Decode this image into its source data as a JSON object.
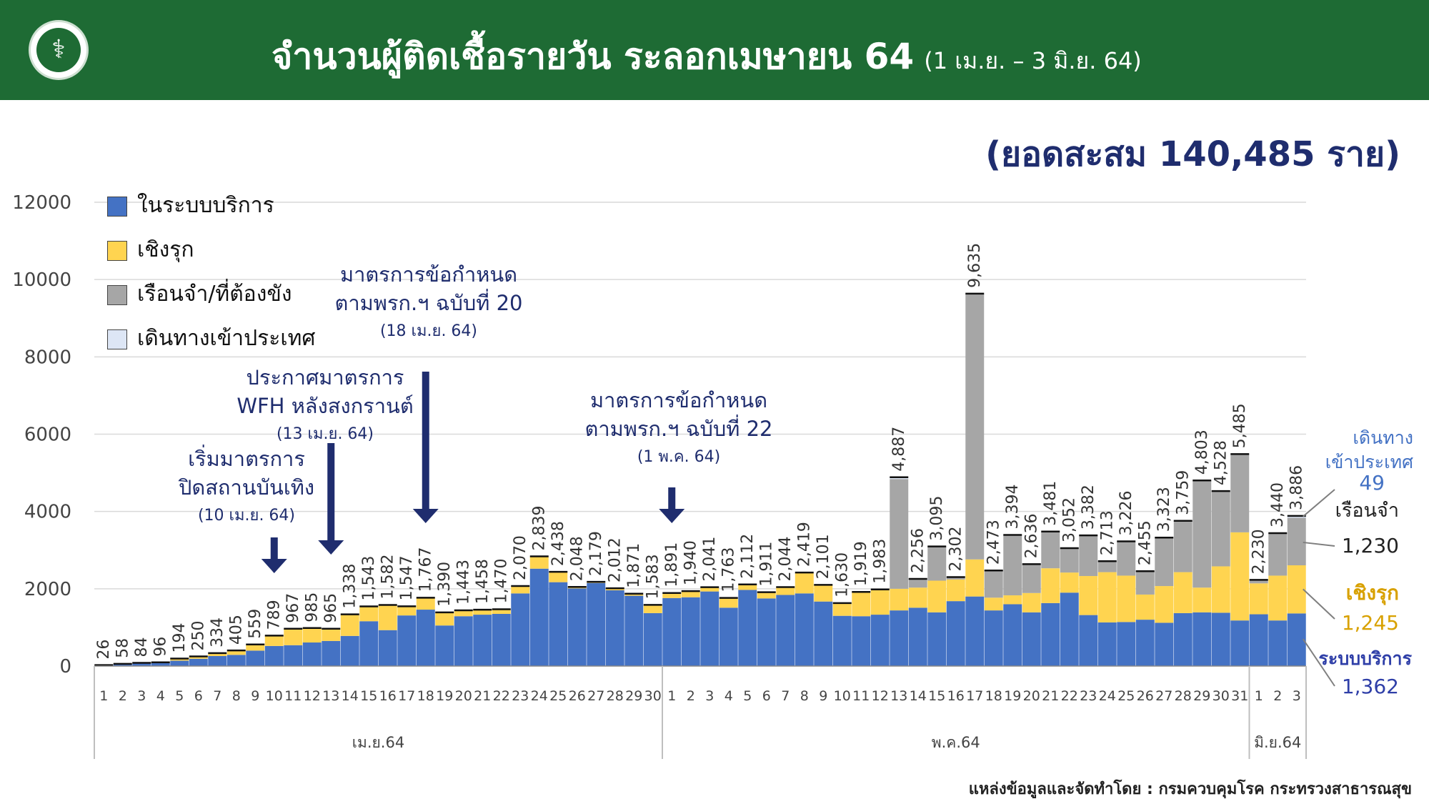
{
  "header": {
    "title": "จำนวนผู้ติดเชื้อรายวัน ระลอกเมษายน 64",
    "subtitle": "(1 เม.ย. – 3 มิ.ย. 64)"
  },
  "cumulative_text": "(ยอดสะสม 140,485 ราย)",
  "source_text": "แหล่งข้อมูลและจัดทำโดย : กรมควบคุมโรค กระทรวงสาธารณสุข",
  "colors": {
    "header_bg": "#1e6b34",
    "service": "#4472c4",
    "active": "#ffd450",
    "prison": "#a6a6a6",
    "travel": "#dde6f5",
    "annotation_text": "#1f2d6e"
  },
  "legend": [
    {
      "label": "ในระบบบริการ",
      "color": "#4472c4"
    },
    {
      "label": "เชิงรุก",
      "color": "#ffd450"
    },
    {
      "label": "เรือนจำ/ที่ต้องขัง",
      "color": "#a6a6a6"
    },
    {
      "label": "เดินทางเข้าประเทศ",
      "color": "#dde6f5"
    }
  ],
  "annotations": [
    {
      "lines": [
        "เริ่มมาตรการ",
        "ปิดสถานบันเทิง"
      ],
      "date": "(10 เม.ย. 64)"
    },
    {
      "lines": [
        "ประกาศมาตรการ",
        "WFH หลังสงกรานต์"
      ],
      "date": "(13 เม.ย. 64)"
    },
    {
      "lines": [
        "มาตรการข้อกำหนด",
        "ตามพรก.ฯ ฉบับที่ 20"
      ],
      "date": "(18 เม.ย. 64)"
    },
    {
      "lines": [
        "มาตรการข้อกำหนด",
        "ตามพรก.ฯ ฉบับที่ 22"
      ],
      "date": "(1 พ.ค. 64)"
    }
  ],
  "side_labels": {
    "travel_title": [
      "เดินทาง",
      "เข้าประเทศ"
    ],
    "travel_value": "49",
    "prison_title": "เรือนจำ",
    "prison_value": "1,230",
    "active_title": "เชิงรุก",
    "active_value": "1,245",
    "service_title": "ระบบบริการ",
    "service_value": "1,362"
  },
  "chart_data": {
    "type": "bar",
    "stacked": true,
    "ylim": [
      0,
      12000
    ],
    "yticks": [
      "0",
      "2000",
      "4000",
      "6000",
      "8000",
      "10000",
      "12000"
    ],
    "grid": true,
    "legend_position": "top-left",
    "categories": [
      "1",
      "2",
      "3",
      "4",
      "5",
      "6",
      "7",
      "8",
      "9",
      "10",
      "11",
      "12",
      "13",
      "14",
      "15",
      "16",
      "17",
      "18",
      "19",
      "20",
      "21",
      "22",
      "23",
      "24",
      "25",
      "26",
      "27",
      "28",
      "29",
      "30",
      "1",
      "2",
      "3",
      "4",
      "5",
      "6",
      "7",
      "8",
      "9",
      "10",
      "11",
      "12",
      "13",
      "14",
      "15",
      "16",
      "17",
      "18",
      "19",
      "20",
      "21",
      "22",
      "23",
      "24",
      "25",
      "26",
      "27",
      "28",
      "29",
      "30",
      "31",
      "1",
      "2",
      "3"
    ],
    "month_groups": [
      {
        "label": "เม.ย.64",
        "count": 30
      },
      {
        "label": "พ.ค.64",
        "count": 31
      },
      {
        "label": "มิ.ย.64",
        "count": 3
      }
    ],
    "total_labels": [
      "26",
      "58",
      "84",
      "96",
      "194",
      "250",
      "334",
      "405",
      "559",
      "789",
      "967",
      "985",
      "965",
      "1,338",
      "1,543",
      "1,582",
      "1,547",
      "1,767",
      "1,390",
      "1,443",
      "1,458",
      "1,470",
      "2,070",
      "2,839",
      "2,438",
      "2,048",
      "2,179",
      "2,012",
      "1,871",
      "1,583",
      "1,891",
      "1,940",
      "2,041",
      "1,763",
      "2,112",
      "1,911",
      "2,044",
      "2,419",
      "2,101",
      "1,630",
      "1,919",
      "1,983",
      "4,887",
      "2,256",
      "3,095",
      "2,302",
      "9,635",
      "2,473",
      "3,394",
      "2,636",
      "3,481",
      "3,052",
      "3,382",
      "2,713",
      "3,226",
      "2,455",
      "3,323",
      "3,759",
      "4,803",
      "4,528",
      "5,485",
      "2,230",
      "3,440",
      "3,886"
    ],
    "series": [
      {
        "name": "ในระบบบริการ",
        "values": [
          20,
          45,
          65,
          75,
          140,
          190,
          260,
          290,
          400,
          520,
          540,
          610,
          650,
          780,
          1160,
          930,
          1310,
          1460,
          1050,
          1290,
          1330,
          1350,
          1880,
          2520,
          2170,
          2010,
          2150,
          1960,
          1820,
          1370,
          1760,
          1780,
          1930,
          1510,
          1970,
          1750,
          1840,
          1880,
          1670,
          1300,
          1290,
          1330,
          1440,
          1510,
          1390,
          1680,
          1800,
          1440,
          1600,
          1390,
          1630,
          1900,
          1320,
          1130,
          1140,
          1200,
          1120,
          1370,
          1390,
          1380,
          1180,
          1340,
          1180,
          1362
        ]
      },
      {
        "name": "เชิงรุก",
        "values": [
          6,
          13,
          19,
          21,
          54,
          60,
          74,
          115,
          159,
          269,
          427,
          375,
          315,
          558,
          383,
          652,
          237,
          307,
          340,
          153,
          128,
          120,
          190,
          319,
          268,
          38,
          29,
          52,
          51,
          213,
          131,
          160,
          111,
          253,
          142,
          161,
          204,
          539,
          431,
          330,
          629,
          653,
          560,
          520,
          820,
          560,
          960,
          330,
          230,
          500,
          900,
          520,
          1010,
          1300,
          1200,
          650,
          950,
          1060,
          640,
          1200,
          2280,
          800,
          1160,
          1245
        ]
      },
      {
        "name": "เรือนจำ/ที่ต้องขัง",
        "values": [
          0,
          0,
          0,
          0,
          0,
          0,
          0,
          0,
          0,
          0,
          0,
          0,
          0,
          0,
          0,
          0,
          0,
          0,
          0,
          0,
          0,
          0,
          0,
          0,
          0,
          0,
          0,
          0,
          0,
          0,
          0,
          0,
          0,
          0,
          0,
          0,
          0,
          0,
          0,
          0,
          0,
          0,
          2840,
          226,
          885,
          62,
          6875,
          703,
          1564,
          746,
          951,
          632,
          1052,
          283,
          886,
          605,
          1253,
          1329,
          2773,
          1948,
          2025,
          90,
          1100,
          1230
        ]
      },
      {
        "name": "เดินทางเข้าประเทศ",
        "values": [
          0,
          0,
          0,
          0,
          0,
          0,
          0,
          0,
          0,
          0,
          0,
          0,
          0,
          0,
          0,
          0,
          0,
          0,
          0,
          0,
          0,
          0,
          0,
          0,
          0,
          0,
          0,
          0,
          0,
          0,
          0,
          0,
          0,
          0,
          0,
          0,
          0,
          0,
          0,
          0,
          0,
          0,
          47,
          0,
          0,
          0,
          0,
          0,
          0,
          0,
          0,
          0,
          0,
          0,
          0,
          0,
          0,
          0,
          0,
          0,
          0,
          0,
          0,
          49
        ]
      }
    ]
  }
}
